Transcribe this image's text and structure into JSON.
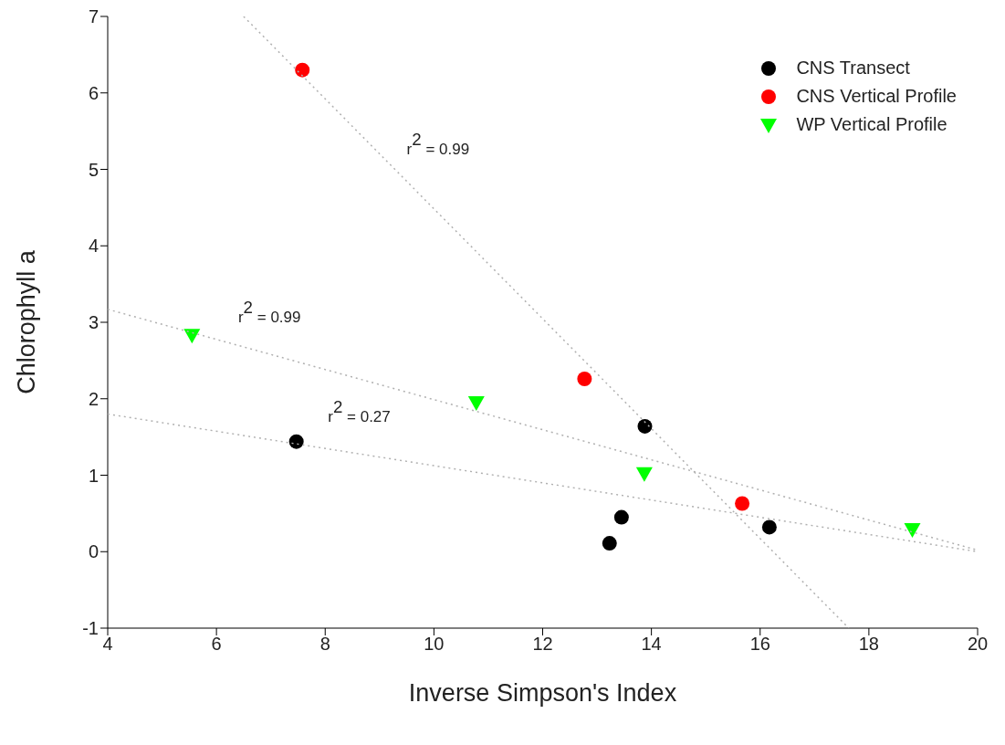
{
  "chart_data": {
    "type": "scatter",
    "xlabel": "Inverse Simpson's Index",
    "ylabel": "Chlorophyll a",
    "xlim": [
      4,
      20
    ],
    "xticks": [
      4,
      6,
      8,
      10,
      12,
      14,
      16,
      18,
      20
    ],
    "ylim": [
      -1,
      7
    ],
    "yticks": [
      -1,
      0,
      1,
      2,
      3,
      4,
      5,
      6,
      7
    ],
    "grid": false,
    "legend": "top right",
    "series": [
      {
        "name": "CNS Transect",
        "color": "#000000",
        "marker": "circle",
        "x": [
          7.47,
          13.88,
          13.45,
          13.23,
          16.17
        ],
        "values": [
          1.44,
          1.64,
          0.45,
          0.11,
          0.32
        ]
      },
      {
        "name": "CNS Vertical Profile",
        "color": "#ff0000",
        "marker": "circle",
        "x": [
          7.58,
          12.77,
          15.67
        ],
        "values": [
          6.3,
          2.26,
          0.63
        ]
      },
      {
        "name": "WP Vertical Profile",
        "color": "#00ff00",
        "marker": "triangle",
        "x": [
          5.55,
          10.78,
          13.87,
          18.8
        ],
        "values": [
          2.83,
          1.95,
          1.02,
          0.29
        ]
      },
      {
        "type": "line",
        "color": "#b0b0b0",
        "line_style": "dotted",
        "marker": "none",
        "x": [
          6.5,
          17.63
        ],
        "values": [
          7,
          -1
        ]
      },
      {
        "type": "line",
        "color": "#b0b0b0",
        "line_style": "dotted",
        "marker": "none",
        "x": [
          4,
          20
        ],
        "values": [
          3.17,
          0.02
        ]
      },
      {
        "type": "line",
        "color": "#b0b0b0",
        "line_style": "dotted",
        "marker": "none",
        "x": [
          4,
          20
        ],
        "values": [
          1.8,
          0
        ]
      }
    ],
    "annotations": [
      "r$^{2}$ = 0.99",
      "r$^{2}$ = 0.99",
      "r$^{2}$ = 0.27"
    ]
  }
}
